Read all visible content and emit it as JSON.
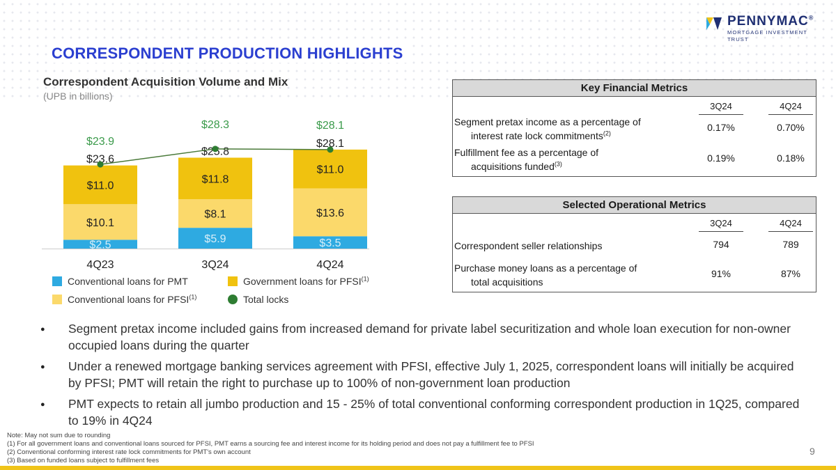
{
  "header": {
    "page_title": "CORRESPONDENT PRODUCTION HIGHLIGHTS",
    "logo_name": "PENNYMAC",
    "logo_mark_reg": "®",
    "logo_sub": "MORTGAGE INVESTMENT TRUST"
  },
  "chart_data": {
    "type": "bar",
    "title": "Correspondent Acquisition Volume and Mix",
    "subtitle": "(UPB in billions)",
    "categories": [
      "4Q23",
      "3Q24",
      "4Q24"
    ],
    "series": [
      {
        "name": "Conventional loans for PMT",
        "values": [
          2.5,
          5.9,
          3.5
        ],
        "labels": [
          "$2.5",
          "$5.9",
          "$3.5"
        ],
        "color": "#2eaae1",
        "label_color": "#d8eef8"
      },
      {
        "name": "Conventional loans for PFSI",
        "values": [
          10.1,
          8.1,
          13.6
        ],
        "labels": [
          "$10.1",
          "$8.1",
          "$13.6"
        ],
        "color": "#fbd96b",
        "label_color": "#222222"
      },
      {
        "name": "Government loans for PFSI",
        "values": [
          11.0,
          11.8,
          11.0
        ],
        "labels": [
          "$11.0",
          "$11.8",
          "$11.0"
        ],
        "color": "#f0c20f",
        "label_color": "#222222"
      }
    ],
    "bar_totals": {
      "values": [
        23.6,
        25.8,
        28.1
      ],
      "labels": [
        "$23.6",
        "$25.8",
        "$28.1"
      ]
    },
    "line": {
      "name": "Total locks",
      "values": [
        23.9,
        28.3,
        28.1
      ],
      "labels": [
        "$23.9",
        "$28.3",
        "$28.1"
      ],
      "color": "#2e7d32",
      "line_color": "#4a7a3a",
      "label_color": "#3a9a4a"
    },
    "ylim": [
      0,
      32
    ]
  },
  "legend": {
    "conv_pmt": "Conventional loans for PMT",
    "gov_pfsi": "Government loans for PFSI",
    "gov_pfsi_sup": "(1)",
    "conv_pfsi": "Conventional loans for PFSI",
    "conv_pfsi_sup": "(1)",
    "total_locks": "Total locks"
  },
  "key_financial": {
    "title": "Key Financial Metrics",
    "cols": [
      "3Q24",
      "4Q24"
    ],
    "rows": [
      {
        "line1": "Segment pretax income as a percentage of",
        "line2": "interest rate lock commitments",
        "sup": "(2)",
        "v1": "0.17%",
        "v2": "0.70%"
      },
      {
        "line1": "Fulfillment fee as a percentage of",
        "line2": "acquisitions funded",
        "sup": "(3)",
        "v1": "0.19%",
        "v2": "0.18%"
      }
    ]
  },
  "operational": {
    "title": "Selected Operational Metrics",
    "cols": [
      "3Q24",
      "4Q24"
    ],
    "rows": [
      {
        "line1": "Correspondent seller relationships",
        "v1": "794",
        "v2": "789"
      },
      {
        "line1": "Purchase money loans as a percentage of",
        "line2": "total acquisitions",
        "v1": "91%",
        "v2": "87%"
      }
    ]
  },
  "bullets": [
    "Segment pretax income included gains from increased demand for private label securitization and whole loan execution for non-owner occupied loans during the quarter",
    "Under a renewed mortgage banking services agreement with PFSI, effective July 1, 2025, correspondent loans will initially be acquired by PFSI; PMT will retain the right to purchase up to 100% of non-government loan production",
    "PMT expects to retain all jumbo production and 15 - 25% of total conventional conforming correspondent production in 1Q25, compared to 19% in 4Q24"
  ],
  "footnotes": [
    "Note: May not sum due to rounding",
    "(1) For all government loans and conventional loans sourced for PFSI, PMT earns a sourcing fee and interest income for its holding period and does not pay a fulfillment fee to PFSI",
    "(2) Conventional conforming interest rate lock commitments for PMT's own account",
    "(3) Based on funded loans subject to fulfillment fees"
  ],
  "page_number": "9",
  "colors": {
    "title_blue": "#2b3fd0",
    "brand_navy": "#1f2f73",
    "accent_yellow": "#f0c419"
  }
}
